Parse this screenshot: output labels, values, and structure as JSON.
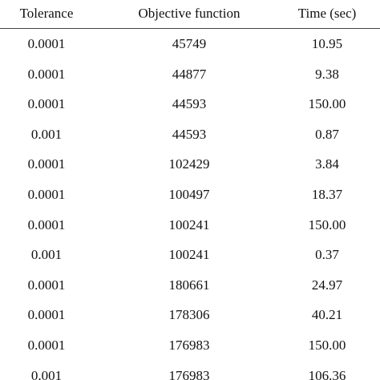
{
  "table": {
    "header": [
      "Tolerance",
      "Objective function",
      "Time (sec)"
    ],
    "rows": [
      [
        "0.0001",
        "45749",
        "10.95"
      ],
      [
        "0.0001",
        "44877",
        "9.38"
      ],
      [
        "0.0001",
        "44593",
        "150.00"
      ],
      [
        "0.001",
        "44593",
        "0.87"
      ],
      [
        "0.0001",
        "102429",
        "3.84"
      ],
      [
        "0.0001",
        "100497",
        "18.37"
      ],
      [
        "0.0001",
        "100241",
        "150.00"
      ],
      [
        "0.001",
        "100241",
        "0.37"
      ],
      [
        "0.0001",
        "180661",
        "24.97"
      ],
      [
        "0.0001",
        "178306",
        "40.21"
      ],
      [
        "0.0001",
        "176983",
        "150.00"
      ],
      [
        "0.001",
        "176983",
        "106.36"
      ]
    ]
  }
}
